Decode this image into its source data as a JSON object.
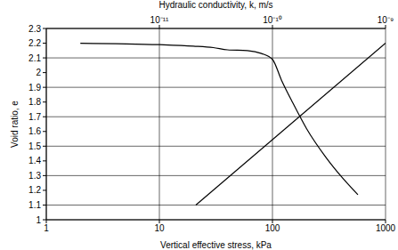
{
  "chart_data": {
    "type": "line",
    "log": "x",
    "grid": true,
    "xlabel": "Vertical effective stress, kPa",
    "ylabel": "Void ratio, e",
    "x2label": "Hydraulic conductivity, k, m/s",
    "xlim": [
      1,
      1000
    ],
    "xticks": [
      1,
      10,
      100,
      1000
    ],
    "x2lim": [
      1e-12,
      1e-09
    ],
    "x2ticks": [
      {
        "value": 1e-11,
        "label": "10⁻¹¹"
      },
      {
        "value": 1e-10,
        "label": "10⁻¹⁰"
      },
      {
        "value": 1e-09,
        "label": "10⁻⁹"
      }
    ],
    "ylim": [
      1,
      2.3
    ],
    "yticks": [
      1,
      1.1,
      1.2,
      1.3,
      1.4,
      1.5,
      1.6,
      1.7,
      1.8,
      1.9,
      2,
      2.1,
      2.2,
      2.3
    ],
    "series": [
      {
        "color": "#000000",
        "line_style": "solid",
        "x": [
          2,
          10,
          20,
          30,
          40,
          60,
          80,
          100,
          120,
          150,
          200,
          300,
          400,
          570
        ],
        "values": [
          2.2,
          2.19,
          2.18,
          2.17,
          2.155,
          2.15,
          2.13,
          2.09,
          1.95,
          1.8,
          1.62,
          1.42,
          1.3,
          1.17
        ]
      },
      {
        "axis": "x2",
        "color": "#000000",
        "line_style": "solid",
        "x": [
          2.1e-11,
          1e-09
        ],
        "values": [
          1.1,
          2.2
        ]
      }
    ]
  }
}
